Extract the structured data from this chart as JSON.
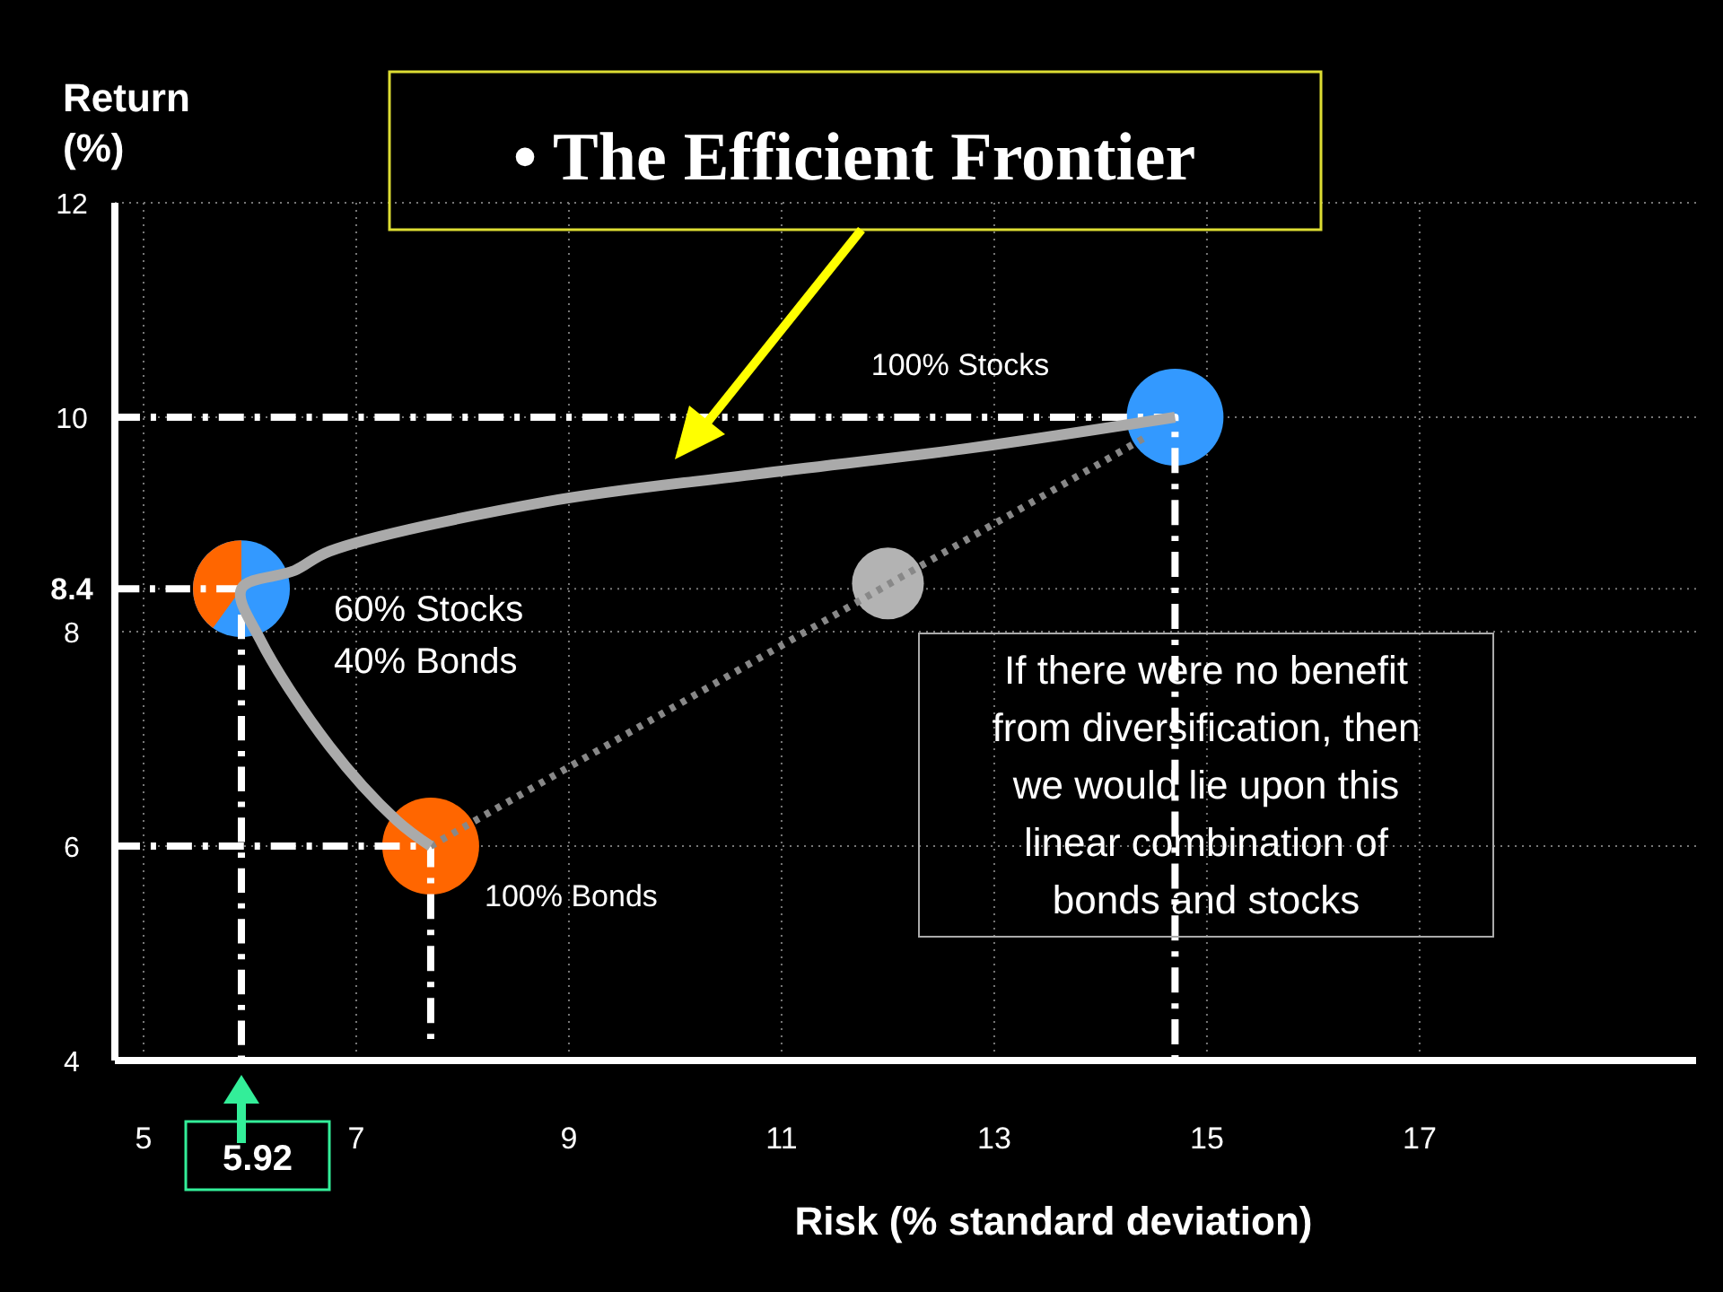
{
  "chart_data": {
    "type": "line",
    "title": "• The Efficient Frontier",
    "xlabel": "Risk (% standard deviation)",
    "ylabel": "Return (%)",
    "xlim": [
      4.73,
      19.6
    ],
    "ylim": [
      4,
      12
    ],
    "xticks": [
      5,
      7,
      9,
      11,
      13,
      15,
      17
    ],
    "yticks": [
      4,
      6,
      8,
      {
        "value": 8.4,
        "label": "8.4"
      },
      10,
      12
    ],
    "grid": true,
    "series": [
      {
        "color": "#ffffff",
        "line_style": "dashed",
        "x": [
          4.73,
          14.7,
          14.7
        ],
        "values": [
          10,
          10,
          4
        ]
      },
      {
        "color": "#ffffff",
        "line_style": "dashed",
        "x": [
          4.73,
          5.92,
          5.92
        ],
        "values": [
          8.4,
          8.4,
          4
        ]
      },
      {
        "color": "#ffffff",
        "line_style": "dashed",
        "x": [
          4.73,
          7.7,
          7.7
        ],
        "values": [
          6,
          6,
          4.2
        ]
      },
      {
        "color": "#888888",
        "line_style": "dotted",
        "x": [
          7.7,
          14.4
        ],
        "values": [
          6,
          9.8
        ]
      },
      {
        "color": "#aaaaaa",
        "line_style": "solid",
        "x": [
          7.7,
          7.38,
          6.75,
          6.1,
          5.92,
          6.42,
          6.75,
          8.78,
          10.77,
          12.76,
          14.7
        ],
        "values": [
          6,
          6.24,
          6.93,
          7.92,
          8.4,
          8.57,
          8.75,
          9.21,
          9.47,
          9.71,
          10
        ]
      },
      {
        "type": "scatter",
        "marker": "circle",
        "x": [
          7.7,
          5.92,
          12,
          14.7
        ],
        "values": [
          6,
          8.4,
          8.45,
          10
        ],
        "sizes": [
          1,
          1,
          0.55,
          1
        ],
        "colors": [
          "#ff6600",
          "#3399ff",
          "#b3b3b3",
          "#3399ff"
        ]
      }
    ],
    "annotations": [
      "100% Stocks",
      "60% Stocks\n40% Bonds",
      "100% Bonds",
      "If there were no benefit\nfrom diversification, then\nwe would lie upon this\nlinear combination of\nbonds and stocks",
      {
        "text": "5.92",
        "x": 5.92,
        "y": 4
      }
    ]
  }
}
